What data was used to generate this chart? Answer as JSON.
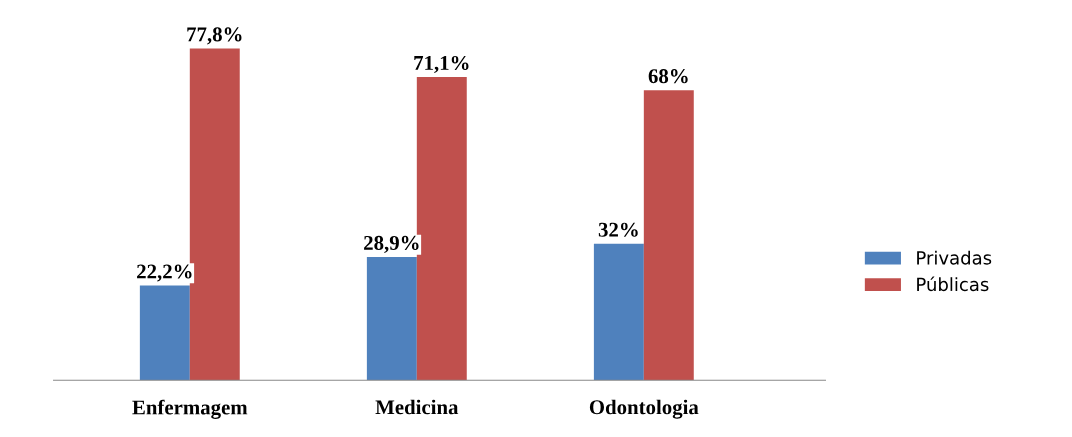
{
  "chart_data": {
    "type": "bar",
    "categories": [
      "Enfermagem",
      "Medicina",
      "Odontologia"
    ],
    "series": [
      {
        "name": "Privadas",
        "color": "#4f81bd",
        "values": [
          22.2,
          28.9,
          32
        ],
        "value_labels": [
          "22,2%",
          "28,9%",
          "32%"
        ]
      },
      {
        "name": "Públicas",
        "color": "#c0504d",
        "values": [
          77.8,
          71.1,
          68
        ],
        "value_labels": [
          "77,8%",
          "71,1%",
          "68%"
        ]
      }
    ],
    "legend": "right",
    "grid": false
  }
}
